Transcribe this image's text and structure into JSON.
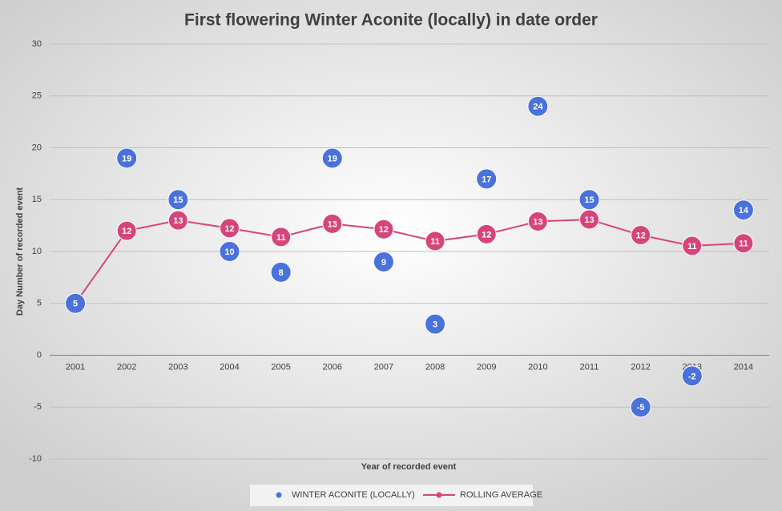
{
  "chart_data": {
    "type": "combo",
    "title": "First flowering Winter Aconite (locally)  in date order",
    "x_label": "Year of recorded  event",
    "y_label": "Day Number of recorded  event",
    "categories": [
      "2001",
      "2002",
      "2003",
      "2004",
      "2005",
      "2006",
      "2007",
      "2008",
      "2009",
      "2010",
      "2011",
      "2012",
      "2013",
      "2014"
    ],
    "ylim": [
      -10,
      30
    ],
    "yticks": [
      -10,
      -5,
      0,
      5,
      10,
      15,
      20,
      25,
      30
    ],
    "grid": true,
    "legend": "bottom",
    "series": [
      {
        "name": "ROLLING AVERAGE",
        "style": "line",
        "color": "#d6457a",
        "values": [
          5,
          12,
          13,
          12.25,
          11.4,
          12.67,
          12.14,
          11,
          11.67,
          12.9,
          13.09,
          11.58,
          10.54,
          10.79
        ],
        "value_labels": [
          "5",
          "12",
          "13",
          "12",
          "11",
          "13",
          "12",
          "11",
          "12",
          "13",
          "13",
          "12",
          "11",
          "11"
        ]
      },
      {
        "name": "WINTER ACONITE (LOCALLY)",
        "style": "markers",
        "color": "#4a72dc",
        "values": [
          5,
          19,
          15,
          10,
          8,
          19,
          9,
          3,
          17,
          24,
          15,
          -5,
          -2,
          14
        ]
      }
    ]
  }
}
